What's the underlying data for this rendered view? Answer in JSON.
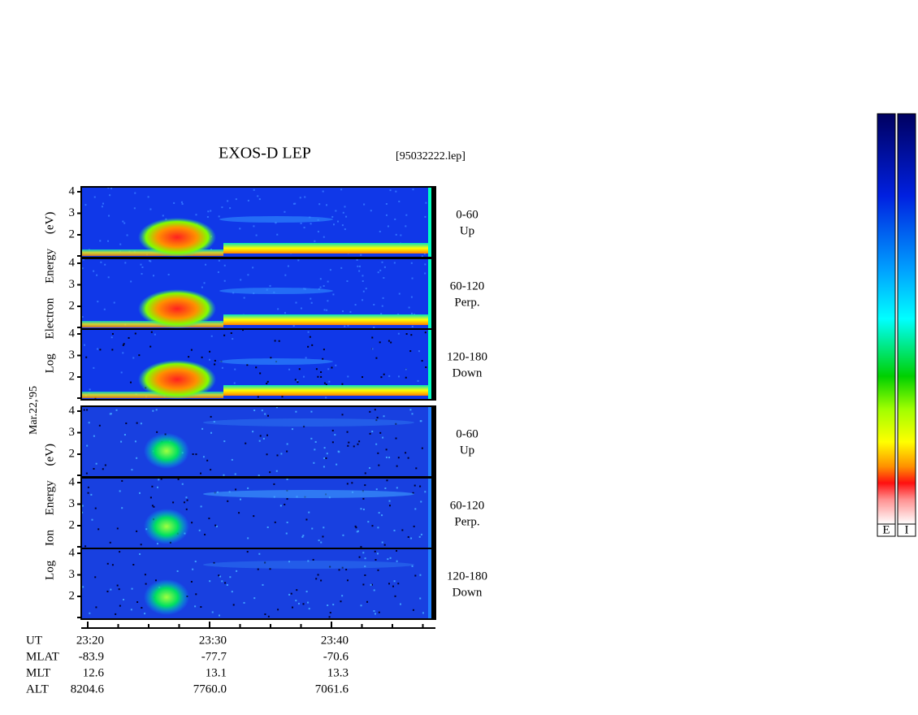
{
  "title": "EXOS-D LEP",
  "file": "[95032222.lep]",
  "date_label": "Mar.22,'95",
  "electron_label": "Log Electron Energy (eV)",
  "ion_label": "Log Ion Energy (eV)",
  "panels": [
    {
      "angle": "0-60",
      "direction": "Up",
      "yticks": [
        "4",
        "3",
        "2"
      ]
    },
    {
      "angle": "60-120",
      "direction": "Perp.",
      "yticks": [
        "4",
        "3",
        "2"
      ]
    },
    {
      "angle": "120-180",
      "direction": "Down",
      "yticks": [
        "4",
        "3",
        "2"
      ]
    },
    {
      "angle": "0-60",
      "direction": "Up",
      "yticks": [
        "4",
        "3",
        "2"
      ]
    },
    {
      "angle": "60-120",
      "direction": "Perp.",
      "yticks": [
        "4",
        "3",
        "2"
      ]
    },
    {
      "angle": "120-180",
      "direction": "Down",
      "yticks": [
        "4",
        "3",
        "2"
      ]
    }
  ],
  "time_rows": [
    {
      "label": "UT",
      "values": [
        "23:20",
        "23:30",
        "23:40"
      ]
    },
    {
      "label": "MLAT",
      "values": [
        "-83.9",
        "-77.7",
        "-70.6"
      ]
    },
    {
      "label": "MLT",
      "values": [
        "12.6",
        "13.1",
        "13.3"
      ]
    },
    {
      "label": "ALT",
      "values": [
        "8204.6",
        "7760.0",
        "7061.6"
      ]
    }
  ],
  "colorbars": [
    "E",
    "I"
  ]
}
